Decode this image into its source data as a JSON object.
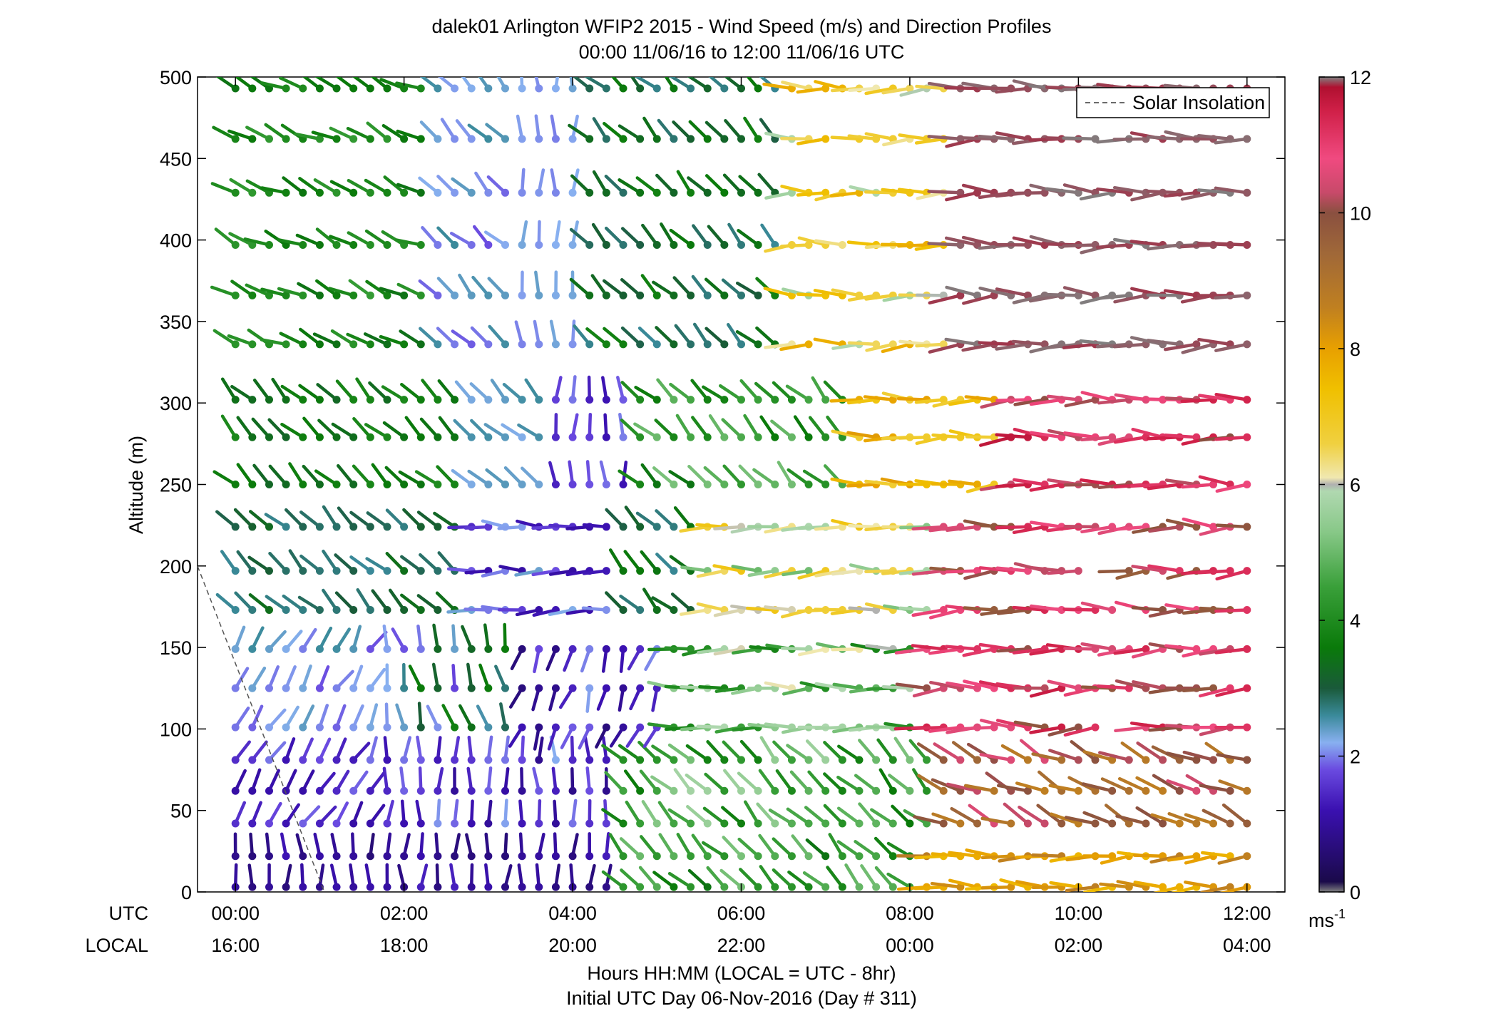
{
  "chart_data": {
    "type": "wind_barb_profile",
    "title_line1": "dalek01 Arlington WFIP2 2015 - Wind Speed (m/s) and Direction Profiles",
    "title_line2": "00:00 11/06/16 to 12:00 11/06/16  UTC",
    "ylabel": "Altitude (m)",
    "xlabel_line1": "Hours HH:MM  (LOCAL = UTC - 8hr)",
    "xlabel_line2": "Initial UTC Day 06-Nov-2016 (Day # 311)",
    "row_label_utc": "UTC",
    "row_label_local": "LOCAL",
    "x_ticks_utc": [
      "00:00",
      "02:00",
      "04:00",
      "06:00",
      "08:00",
      "10:00",
      "12:00"
    ],
    "x_ticks_local": [
      "16:00",
      "18:00",
      "20:00",
      "22:00",
      "00:00",
      "02:00",
      "04:00"
    ],
    "x_tick_hours": [
      0,
      2,
      4,
      6,
      8,
      10,
      12
    ],
    "xlim_hours": [
      -0.45,
      12.45
    ],
    "y_ticks": [
      "0",
      "50",
      "100",
      "150",
      "200",
      "250",
      "300",
      "350",
      "400",
      "450",
      "500"
    ],
    "ylim": [
      0,
      500
    ],
    "grid": false,
    "legend": {
      "entry": "Solar Insolation",
      "style": "dashed",
      "color": "#555555",
      "placement": "top-right"
    },
    "colorbar": {
      "ticks": [
        "0",
        "2",
        "4",
        "6",
        "8",
        "10",
        "12"
      ],
      "range": [
        0,
        12
      ],
      "unit_base": "ms",
      "unit_exp": "-1",
      "stops": [
        [
          0.0,
          "#808080"
        ],
        [
          0.15,
          "#1a0a4a"
        ],
        [
          1.2,
          "#3a10b0"
        ],
        [
          1.8,
          "#6a4ae0"
        ],
        [
          2.2,
          "#88b0f0"
        ],
        [
          2.6,
          "#3a8a9a"
        ],
        [
          3.0,
          "#1a5a3a"
        ],
        [
          3.6,
          "#0a7a0a"
        ],
        [
          4.5,
          "#3aa03a"
        ],
        [
          5.3,
          "#88c888"
        ],
        [
          5.9,
          "#b0d8b0"
        ],
        [
          6.0,
          "#b0b0b0"
        ],
        [
          6.1,
          "#f0e8b0"
        ],
        [
          6.6,
          "#f0d040"
        ],
        [
          7.4,
          "#f0c000"
        ],
        [
          8.0,
          "#e8a000"
        ],
        [
          8.6,
          "#c08020"
        ],
        [
          9.4,
          "#a06838"
        ],
        [
          10.0,
          "#8a5040"
        ],
        [
          10.3,
          "#c84a6a"
        ],
        [
          10.8,
          "#f04a80"
        ],
        [
          11.5,
          "#d02048"
        ],
        [
          11.85,
          "#b01030"
        ],
        [
          12.0,
          "#808080"
        ]
      ]
    },
    "time_step_hours": 0.2,
    "altitudes": [
      3,
      22,
      42,
      62,
      81,
      101,
      125,
      149,
      173,
      197,
      224,
      250,
      279,
      302,
      336,
      366,
      397,
      429,
      462,
      493
    ],
    "profile_segments": [
      {
        "z_max": 40,
        "spans": [
          [
            0,
            4.6,
            "S",
            0.6,
            1.4
          ],
          [
            4.6,
            8.1,
            "SW",
            3.4,
            5.2
          ],
          [
            8.1,
            12,
            "W",
            7.5,
            8.8
          ]
        ]
      },
      {
        "z_max": 90,
        "spans": [
          [
            0,
            1.6,
            "SE",
            1.0,
            2.0
          ],
          [
            1.6,
            4.6,
            "S",
            0.8,
            2.2
          ],
          [
            4.6,
            8.3,
            "SW",
            3.6,
            5.8
          ],
          [
            8.3,
            12,
            "WSW",
            8.6,
            10.6
          ]
        ]
      },
      {
        "z_max": 160,
        "spans": [
          [
            0,
            1.6,
            "SE",
            1.8,
            2.6
          ],
          [
            1.6,
            3.2,
            "SSW",
            1.6,
            3.8
          ],
          [
            3.2,
            5.0,
            "NNW",
            0.5,
            2.2
          ],
          [
            5.0,
            8.2,
            "W",
            3.8,
            6.2
          ],
          [
            8.2,
            12,
            "W",
            9.8,
            11.6
          ]
        ]
      },
      {
        "z_max": 235,
        "spans": [
          [
            0,
            2.6,
            "SW",
            2.6,
            3.4
          ],
          [
            2.6,
            4.4,
            "W",
            1.0,
            2.4
          ],
          [
            4.4,
            5.6,
            "SW",
            2.6,
            3.6
          ],
          [
            5.6,
            8.3,
            "W",
            5.0,
            7.2
          ],
          [
            8.3,
            12,
            "W",
            9.6,
            11.4
          ]
        ]
      },
      {
        "z_max": 320,
        "spans": [
          [
            0,
            2.8,
            "SW",
            3.2,
            4.0
          ],
          [
            2.8,
            3.6,
            "SW",
            2.2,
            2.6
          ],
          [
            3.6,
            4.8,
            "S",
            1.2,
            2.0
          ],
          [
            4.8,
            7.2,
            "SW",
            3.4,
            5.2
          ],
          [
            7.2,
            9.0,
            "W",
            6.6,
            8.2
          ],
          [
            9.0,
            12,
            "W",
            10.0,
            11.8
          ]
        ]
      },
      {
        "z_max": 520,
        "spans": [
          [
            0,
            2.4,
            "WSW",
            3.4,
            4.4
          ],
          [
            2.4,
            3.4,
            "SW",
            1.8,
            2.6
          ],
          [
            3.4,
            4.0,
            "S",
            2.0,
            2.4
          ],
          [
            4.0,
            6.4,
            "SW",
            2.6,
            3.8
          ],
          [
            6.4,
            8.4,
            "W",
            5.6,
            7.8
          ],
          [
            8.4,
            12,
            "W",
            11.9,
            12.0
          ]
        ]
      }
    ],
    "missing_samples": [
      [
        7.2,
        462
      ],
      [
        7.4,
        397
      ],
      [
        7.0,
        336
      ],
      [
        10.2,
        197
      ],
      [
        10.4,
        197
      ],
      [
        10.6,
        173
      ],
      [
        10.4,
        101
      ],
      [
        10.6,
        101
      ],
      [
        10.4,
        462
      ]
    ]
  }
}
